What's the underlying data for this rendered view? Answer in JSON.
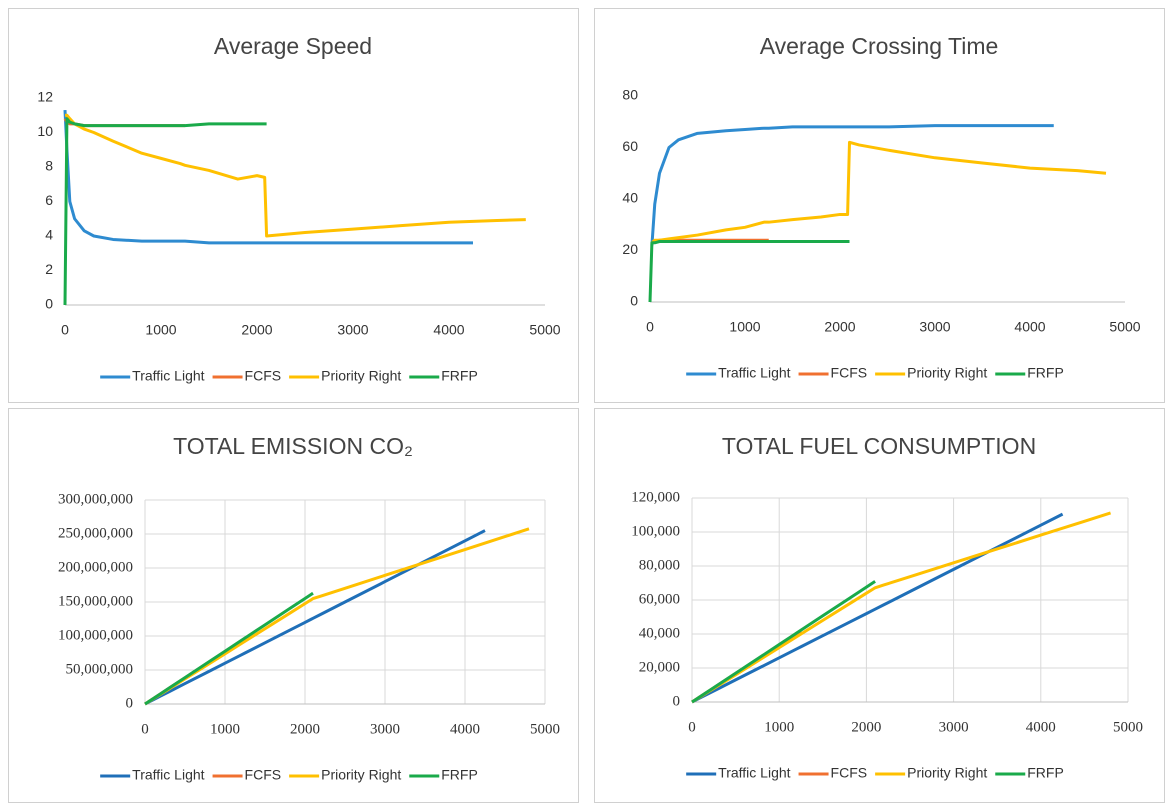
{
  "chart_data": [
    {
      "type": "line",
      "title": "Average Speed",
      "x": [
        0,
        20,
        50,
        100,
        200,
        300,
        500,
        800,
        1000,
        1200,
        1250,
        1500,
        1800,
        2000,
        2080,
        2100,
        2200,
        2500,
        3000,
        3500,
        4000,
        4250,
        4500,
        4800
      ],
      "xlim": [
        0,
        5000
      ],
      "xticks": [
        0,
        1000,
        2000,
        3000,
        4000,
        5000
      ],
      "ylim": [
        0,
        12
      ],
      "yticks": [
        0,
        2,
        4,
        6,
        8,
        10,
        12
      ],
      "grid": false,
      "legend": "bottom",
      "series": [
        {
          "name": "Traffic Light",
          "color": "#2e8bd0",
          "values": [
            11.3,
            9,
            6,
            5,
            4.3,
            4.0,
            3.8,
            3.7,
            3.7,
            3.7,
            3.7,
            3.6,
            3.6,
            3.6,
            3.6,
            3.6,
            3.6,
            3.6,
            3.6,
            3.6,
            3.6,
            3.6,
            null,
            null
          ]
        },
        {
          "name": "FCFS",
          "color": "#f07030",
          "values": [
            10.8,
            10.6,
            10.5,
            10.5,
            10.4,
            10.4,
            10.4,
            10.4,
            10.4,
            10.4,
            10.4,
            null,
            null,
            null,
            null,
            null,
            null,
            null,
            null,
            null,
            null,
            null,
            null,
            null
          ]
        },
        {
          "name": "Priority Right",
          "color": "#ffc000",
          "values": [
            11,
            11,
            10.8,
            10.5,
            10.2,
            10,
            9.5,
            8.8,
            8.5,
            8.2,
            8.1,
            7.8,
            7.3,
            7.5,
            7.4,
            4.0,
            4.05,
            4.2,
            4.4,
            4.6,
            4.8,
            4.85,
            4.9,
            4.95
          ]
        },
        {
          "name": "FRFP",
          "color": "#1aaa4a",
          "values": [
            0,
            10.8,
            10.6,
            10.5,
            10.4,
            10.4,
            10.4,
            10.4,
            10.4,
            10.4,
            10.4,
            10.5,
            10.5,
            10.5,
            10.5,
            10.5,
            null,
            null,
            null,
            null,
            null,
            null,
            null,
            null
          ]
        }
      ]
    },
    {
      "type": "line",
      "title": "Average Crossing Time",
      "x": [
        0,
        20,
        50,
        100,
        200,
        300,
        500,
        800,
        1000,
        1200,
        1250,
        1500,
        1800,
        2000,
        2080,
        2100,
        2200,
        2500,
        3000,
        3500,
        4000,
        4250,
        4500,
        4800
      ],
      "xlim": [
        0,
        5000
      ],
      "xticks": [
        0,
        1000,
        2000,
        3000,
        4000,
        5000
      ],
      "ylim": [
        0,
        80
      ],
      "yticks": [
        0,
        20,
        40,
        60,
        80
      ],
      "grid": false,
      "legend": "bottom",
      "series": [
        {
          "name": "Traffic Light",
          "color": "#2e8bd0",
          "values": [
            null,
            22,
            38,
            50,
            60,
            63,
            65.5,
            66.5,
            67,
            67.5,
            67.5,
            68,
            68,
            68,
            68,
            68,
            68,
            68,
            68.5,
            68.5,
            68.5,
            68.5,
            null,
            null
          ]
        },
        {
          "name": "FCFS",
          "color": "#f07030",
          "values": [
            null,
            23,
            23.5,
            24,
            24,
            24,
            24,
            24,
            24,
            24,
            24,
            null,
            null,
            null,
            null,
            null,
            null,
            null,
            null,
            null,
            null,
            null,
            null,
            null
          ]
        },
        {
          "name": "Priority Right",
          "color": "#ffc000",
          "values": [
            null,
            23,
            24,
            24,
            24.5,
            25,
            26,
            28,
            29,
            31,
            31,
            32,
            33,
            34,
            34,
            62,
            61,
            59,
            56,
            54,
            52,
            51.5,
            51,
            50
          ]
        },
        {
          "name": "FRFP",
          "color": "#1aaa4a",
          "values": [
            0,
            23,
            23,
            23.5,
            23.5,
            23.5,
            23.5,
            23.5,
            23.5,
            23.5,
            23.5,
            23.5,
            23.5,
            23.5,
            23.5,
            23.5,
            null,
            null,
            null,
            null,
            null,
            null,
            null,
            null
          ]
        }
      ]
    },
    {
      "type": "line",
      "title": "TOTAL EMISSION CO₂",
      "x": [
        0,
        20,
        50,
        100,
        200,
        300,
        500,
        800,
        1000,
        1200,
        1250,
        1500,
        1800,
        2000,
        2080,
        2100,
        2200,
        2500,
        3000,
        3500,
        4000,
        4250,
        4500,
        4800
      ],
      "xlim": [
        0,
        5000
      ],
      "xticks": [
        0,
        1000,
        2000,
        3000,
        4000,
        5000
      ],
      "ylim": [
        0,
        300000000
      ],
      "yticks": [
        0,
        {
          "value": 50000000,
          "label": "50,000,000"
        },
        {
          "value": 100000000,
          "label": "100,000,000"
        },
        {
          "value": 150000000,
          "label": "150,000,000"
        },
        {
          "value": 200000000,
          "label": "200,000,000"
        },
        {
          "value": 250000000,
          "label": "250,000,000"
        },
        {
          "value": 300000000,
          "label": "300,000,000"
        }
      ],
      "grid": true,
      "legend": "bottom",
      "series": [
        {
          "name": "Traffic Light",
          "color": "#1f6fb8",
          "values": [
            0,
            1200000,
            3000000,
            6000000,
            12000000,
            18000000,
            30000000,
            48000000,
            60000000,
            72000000,
            75000000,
            90000000,
            108000000,
            120000000,
            124800000,
            126000000,
            132000000,
            150000000,
            180000000,
            210000000,
            240000000,
            255000000,
            null,
            null
          ]
        },
        {
          "name": "FCFS",
          "color": "#f07030",
          "values": [
            0,
            1540000,
            3850000,
            7700000,
            15400000,
            23100000,
            38500000,
            61600000,
            77000000,
            92400000,
            96250000,
            null,
            null,
            null,
            null,
            null,
            null,
            null,
            null,
            null,
            null,
            null,
            null,
            null
          ]
        },
        {
          "name": "Priority Right",
          "color": "#ffc000",
          "values": [
            0,
            1476000,
            3690000,
            7380000,
            14760000,
            22140000,
            36900000,
            59040000,
            73800000,
            88560000,
            92250000,
            110700000,
            132840000,
            147600000,
            153504000,
            154980000,
            158780000,
            170180000,
            189180000,
            208180000,
            227180000,
            236680000,
            246180000,
            257580000
          ]
        },
        {
          "name": "FRFP",
          "color": "#1aaa4a",
          "values": [
            0,
            1552000,
            3880000,
            7760000,
            15520000,
            23280000,
            38800000,
            62080000,
            77600000,
            93120000,
            97000000,
            116400000,
            139680000,
            155200000,
            161408000,
            162960000,
            null,
            null,
            null,
            null,
            null,
            null,
            null,
            null
          ]
        }
      ]
    },
    {
      "type": "line",
      "title": "TOTAL FUEL CONSUMPTION",
      "x": [
        0,
        20,
        50,
        100,
        200,
        300,
        500,
        800,
        1000,
        1200,
        1250,
        1500,
        1800,
        2000,
        2080,
        2100,
        2200,
        2500,
        3000,
        3500,
        4000,
        4250,
        4500,
        4800
      ],
      "xlim": [
        0,
        5000
      ],
      "xticks": [
        0,
        1000,
        2000,
        3000,
        4000,
        5000
      ],
      "ylim": [
        0,
        120000
      ],
      "yticks": [
        0,
        {
          "value": 20000,
          "label": "20,000"
        },
        {
          "value": 40000,
          "label": "40,000"
        },
        {
          "value": 60000,
          "label": "60,000"
        },
        {
          "value": 80000,
          "label": "80,000"
        },
        {
          "value": 100000,
          "label": "100,000"
        },
        {
          "value": 120000,
          "label": "120,000"
        }
      ],
      "grid": true,
      "legend": "bottom",
      "series": [
        {
          "name": "Traffic Light",
          "color": "#1f6fb8",
          "values": [
            0,
            520,
            1300,
            2600,
            5200,
            7800,
            13000,
            20800,
            26000,
            31200,
            32500,
            39000,
            46800,
            52000,
            54080,
            54600,
            57200,
            65000,
            78000,
            91000,
            104000,
            110500,
            null,
            null
          ]
        },
        {
          "name": "FCFS",
          "color": "#f07030",
          "values": [
            0,
            670,
            1675,
            3350,
            6700,
            10050,
            16750,
            26800,
            33500,
            40200,
            41875,
            null,
            null,
            null,
            null,
            null,
            null,
            null,
            null,
            null,
            null,
            null,
            null,
            null
          ]
        },
        {
          "name": "Priority Right",
          "color": "#ffc000",
          "values": [
            0,
            640,
            1600,
            3200,
            6400,
            9600,
            16000,
            25600,
            32000,
            38400,
            40000,
            48000,
            57600,
            64000,
            66560,
            67200,
            68830,
            73720,
            81870,
            90020,
            98170,
            102245,
            106320,
            111210
          ]
        },
        {
          "name": "FRFP",
          "color": "#1aaa4a",
          "values": [
            0,
            676,
            1690,
            3380,
            6760,
            10140,
            16900,
            27040,
            33800,
            40560,
            42250,
            50700,
            60840,
            67600,
            70304,
            70980,
            null,
            null,
            null,
            null,
            null,
            null,
            null,
            null
          ]
        }
      ]
    }
  ]
}
